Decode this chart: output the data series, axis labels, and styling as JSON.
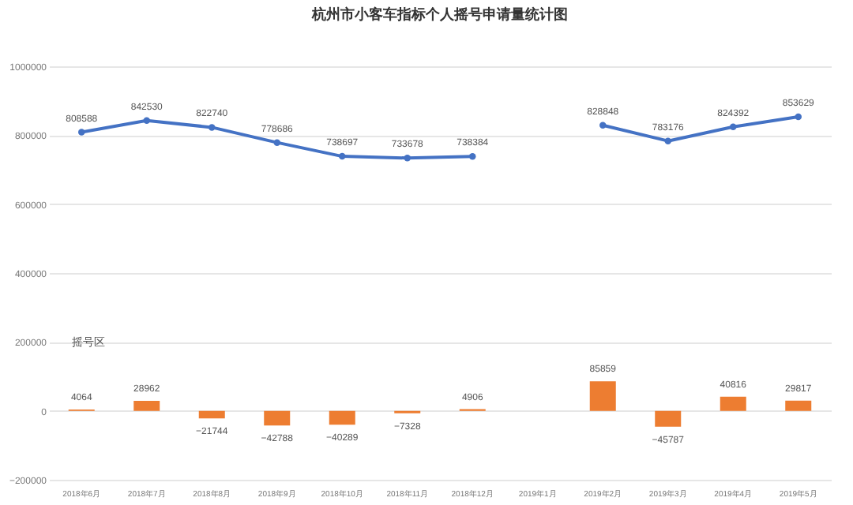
{
  "chart_data": {
    "type": "bar",
    "title": "杭州市小客车指标个人摇号申请量统计图",
    "categories": [
      "2018年6月",
      "2018年7月",
      "2018年8月",
      "2018年9月",
      "2018年10月",
      "2018年11月",
      "2018年12月",
      "2019年1月",
      "2019年2月",
      "2019年3月",
      "2019年4月",
      "2019年5月"
    ],
    "series": [
      {
        "type": "line",
        "color": "#4472c4",
        "values": [
          808588,
          842530,
          822740,
          778686,
          738697,
          733678,
          738384,
          null,
          828848,
          783176,
          824392,
          853629
        ]
      },
      {
        "color": "#ed7d31",
        "values": [
          4064,
          28962,
          -21744,
          -42788,
          -40289,
          -7328,
          4906,
          null,
          85859,
          -45787,
          40816,
          29817
        ]
      }
    ],
    "annotations": [
      "摇号区"
    ],
    "ylim": [
      -200000,
      1000000
    ],
    "yticks": [
      -200000,
      0,
      200000,
      400000,
      600000,
      800000,
      1000000
    ],
    "grid": "y",
    "marker": "circle",
    "data_labels": true
  }
}
